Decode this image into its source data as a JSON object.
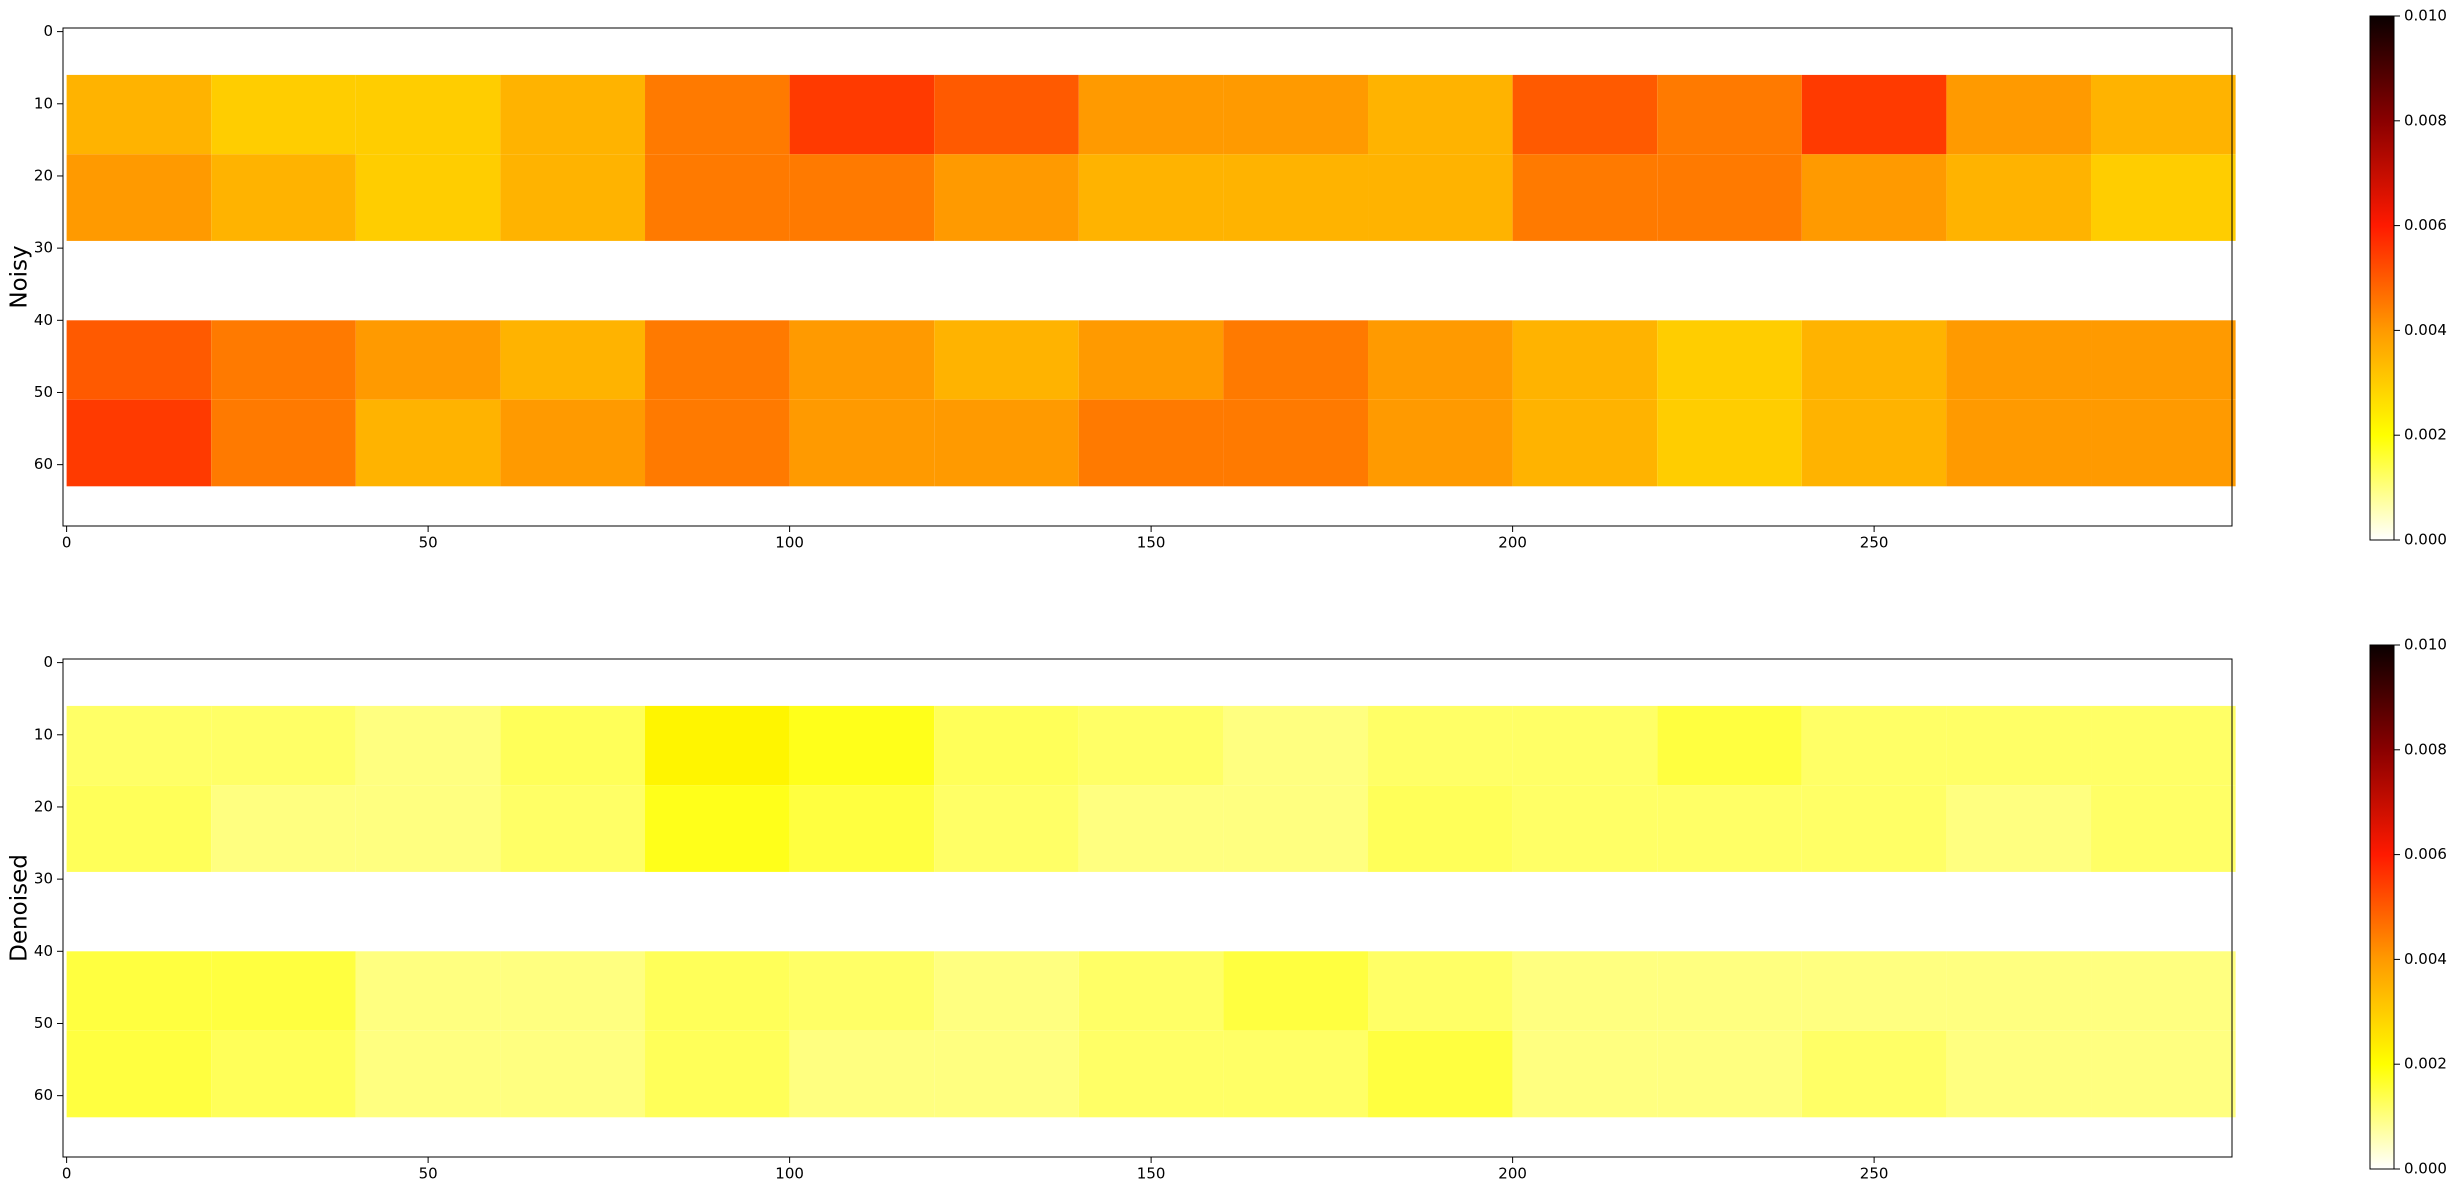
{
  "chart_data": [
    {
      "type": "heatmap",
      "ylabel": "Noisy",
      "colormap": "hot_r",
      "x_bins": [
        0,
        20,
        40,
        60,
        80,
        100,
        120,
        140,
        160,
        180,
        200,
        220,
        240,
        260,
        280,
        300
      ],
      "y_bins": [
        6,
        17,
        29,
        40,
        51,
        63
      ],
      "z": [
        [
          0.0035,
          0.003,
          0.003,
          0.0035,
          0.0045,
          0.0055,
          0.005,
          0.004,
          0.004,
          0.0035,
          0.005,
          0.0045,
          0.0055,
          0.004,
          0.0035
        ],
        [
          0.004,
          0.0035,
          0.003,
          0.0035,
          0.0045,
          0.0045,
          0.004,
          0.0035,
          0.0035,
          0.0035,
          0.0045,
          0.0045,
          0.004,
          0.0035,
          0.003
        ],
        [
          null,
          null,
          null,
          null,
          null,
          null,
          null,
          null,
          null,
          null,
          null,
          null,
          null,
          null,
          null
        ],
        [
          0.005,
          0.0045,
          0.004,
          0.0035,
          0.0045,
          0.004,
          0.0035,
          0.004,
          0.0045,
          0.004,
          0.0035,
          0.003,
          0.0035,
          0.004,
          0.004
        ],
        [
          0.0055,
          0.0045,
          0.0035,
          0.004,
          0.0045,
          0.004,
          0.004,
          0.0045,
          0.0045,
          0.004,
          0.0035,
          0.003,
          0.0035,
          0.004,
          0.004
        ]
      ],
      "xlim": [
        -0.5,
        299.5
      ],
      "ylim": [
        68.5,
        -0.5
      ],
      "xticks": [
        0,
        50,
        100,
        150,
        200,
        250
      ],
      "yticks": [
        0,
        10,
        20,
        30,
        40,
        50,
        60
      ],
      "clim": [
        0,
        0.01
      ],
      "cticks": [
        {
          "value": 0,
          "label": "0.000"
        },
        {
          "value": 0.002,
          "label": "0.002"
        },
        {
          "value": 0.004,
          "label": "0.004"
        },
        {
          "value": 0.006,
          "label": "0.006"
        },
        {
          "value": 0.008,
          "label": "0.008"
        },
        {
          "value": 0.01,
          "label": "0.010"
        }
      ]
    },
    {
      "type": "heatmap",
      "ylabel": "Denoised",
      "colormap": "hot_r",
      "x_bins": [
        0,
        20,
        40,
        60,
        80,
        100,
        120,
        140,
        160,
        180,
        200,
        220,
        240,
        260,
        280,
        300
      ],
      "y_bins": [
        6,
        17,
        29,
        40,
        51,
        63
      ],
      "z": [
        [
          0.0012,
          0.0012,
          0.001,
          0.0013,
          0.0022,
          0.0018,
          0.0013,
          0.0012,
          0.001,
          0.0012,
          0.0012,
          0.0015,
          0.0012,
          0.0012,
          0.0012
        ],
        [
          0.0013,
          0.001,
          0.001,
          0.0012,
          0.0018,
          0.0015,
          0.0012,
          0.001,
          0.001,
          0.0013,
          0.0012,
          0.0012,
          0.0012,
          0.001,
          0.0012
        ],
        [
          null,
          null,
          null,
          null,
          null,
          null,
          null,
          null,
          null,
          null,
          null,
          null,
          null,
          null,
          null
        ],
        [
          0.0015,
          0.0015,
          0.001,
          0.001,
          0.0013,
          0.0012,
          0.001,
          0.0012,
          0.0015,
          0.0012,
          0.001,
          0.001,
          0.001,
          0.001,
          0.001
        ],
        [
          0.0015,
          0.0013,
          0.001,
          0.001,
          0.0013,
          0.001,
          0.001,
          0.0012,
          0.0012,
          0.0015,
          0.001,
          0.001,
          0.0012,
          0.001,
          0.001
        ]
      ],
      "xlim": [
        -0.5,
        299.5
      ],
      "ylim": [
        68.5,
        -0.5
      ],
      "xticks": [
        0,
        50,
        100,
        150,
        200,
        250
      ],
      "yticks": [
        0,
        10,
        20,
        30,
        40,
        50,
        60
      ],
      "clim": [
        0,
        0.01
      ],
      "cticks": [
        {
          "value": 0,
          "label": "0.000"
        },
        {
          "value": 0.002,
          "label": "0.002"
        },
        {
          "value": 0.004,
          "label": "0.004"
        },
        {
          "value": 0.006,
          "label": "0.006"
        },
        {
          "value": 0.008,
          "label": "0.008"
        },
        {
          "value": 0.01,
          "label": "0.010"
        }
      ]
    }
  ]
}
